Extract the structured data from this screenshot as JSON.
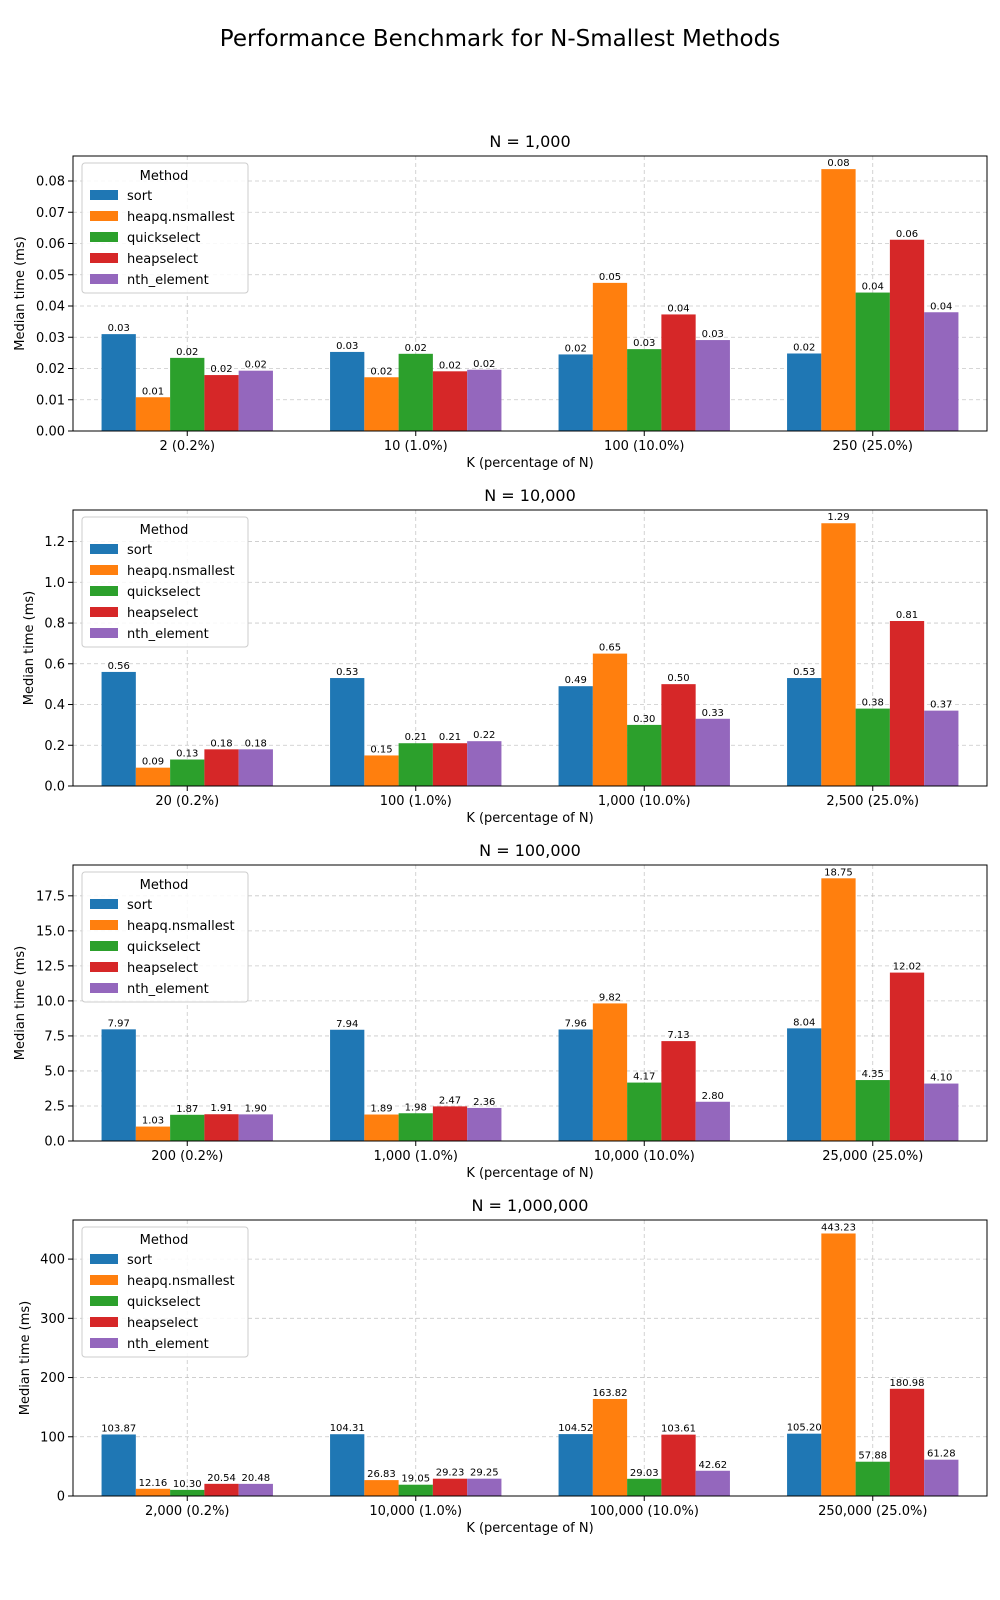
{
  "figure": {
    "title": "Performance Benchmark for N-Smallest Methods"
  },
  "colors": {
    "sort": "#1f77b4",
    "heapq.nsmallest": "#ff7f0e",
    "quickselect": "#2ca02c",
    "heapselect": "#d62728",
    "nth_element": "#9467bd"
  },
  "legend": {
    "title": "Method",
    "placement": "upper-left"
  },
  "chart_data": [
    {
      "type": "bar",
      "title": "N = 1,000",
      "xlabel": "K (percentage of N)",
      "ylabel": "Median time (ms)",
      "ylim": [
        0,
        0.088
      ],
      "yticks": [
        0,
        0.01,
        0.02,
        0.03,
        0.04,
        0.05,
        0.06,
        0.07,
        0.08
      ],
      "ytick_labels": [
        "0.00",
        "0.01",
        "0.02",
        "0.03",
        "0.04",
        "0.05",
        "0.06",
        "0.07",
        "0.08"
      ],
      "grid": true,
      "categories": [
        "2 (0.2%)",
        "10 (1.0%)",
        "100 (10.0%)",
        "250 (25.0%)"
      ],
      "series": [
        {
          "name": "sort",
          "values": [
            0.031,
            0.0253,
            0.0245,
            0.0248
          ],
          "labels": [
            "0.03",
            "0.03",
            "0.02",
            "0.02"
          ]
        },
        {
          "name": "heapq.nsmallest",
          "values": [
            0.0108,
            0.0172,
            0.0474,
            0.0838
          ],
          "labels": [
            "0.01",
            "0.02",
            "0.05",
            "0.08"
          ]
        },
        {
          "name": "quickselect",
          "values": [
            0.0234,
            0.0247,
            0.0262,
            0.0443
          ],
          "labels": [
            "0.02",
            "0.02",
            "0.03",
            "0.04"
          ]
        },
        {
          "name": "heapselect",
          "values": [
            0.0179,
            0.0191,
            0.0373,
            0.0612
          ],
          "labels": [
            "0.02",
            "0.02",
            "0.04",
            "0.06"
          ]
        },
        {
          "name": "nth_element",
          "values": [
            0.0193,
            0.0196,
            0.0291,
            0.038
          ],
          "labels": [
            "0.02",
            "0.02",
            "0.03",
            "0.04"
          ]
        }
      ]
    },
    {
      "type": "bar",
      "title": "N = 10,000",
      "xlabel": "K (percentage of N)",
      "ylabel": "Median time (ms)",
      "ylim": [
        0,
        1.355
      ],
      "yticks": [
        0,
        0.2,
        0.4,
        0.6,
        0.8,
        1.0,
        1.2
      ],
      "ytick_labels": [
        "0.0",
        "0.2",
        "0.4",
        "0.6",
        "0.8",
        "1.0",
        "1.2"
      ],
      "grid": true,
      "categories": [
        "20 (0.2%)",
        "100 (1.0%)",
        "1,000 (10.0%)",
        "2,500 (25.0%)"
      ],
      "series": [
        {
          "name": "sort",
          "values": [
            0.56,
            0.53,
            0.49,
            0.53
          ],
          "labels": [
            "0.56",
            "0.53",
            "0.49",
            "0.53"
          ]
        },
        {
          "name": "heapq.nsmallest",
          "values": [
            0.09,
            0.15,
            0.65,
            1.29
          ],
          "labels": [
            "0.09",
            "0.15",
            "0.65",
            "1.29"
          ]
        },
        {
          "name": "quickselect",
          "values": [
            0.13,
            0.21,
            0.3,
            0.38
          ],
          "labels": [
            "0.13",
            "0.21",
            "0.30",
            "0.38"
          ]
        },
        {
          "name": "heapselect",
          "values": [
            0.18,
            0.21,
            0.5,
            0.81
          ],
          "labels": [
            "0.18",
            "0.21",
            "0.50",
            "0.81"
          ]
        },
        {
          "name": "nth_element",
          "values": [
            0.18,
            0.22,
            0.33,
            0.37
          ],
          "labels": [
            "0.18",
            "0.22",
            "0.33",
            "0.37"
          ]
        }
      ]
    },
    {
      "type": "bar",
      "title": "N = 100,000",
      "xlabel": "K (percentage of N)",
      "ylabel": "Median time (ms)",
      "ylim": [
        0,
        19.7
      ],
      "yticks": [
        0,
        2.5,
        5.0,
        7.5,
        10.0,
        12.5,
        15.0,
        17.5
      ],
      "ytick_labels": [
        "0.0",
        "2.5",
        "5.0",
        "7.5",
        "10.0",
        "12.5",
        "15.0",
        "17.5"
      ],
      "grid": true,
      "categories": [
        "200 (0.2%)",
        "1,000 (1.0%)",
        "10,000 (10.0%)",
        "25,000 (25.0%)"
      ],
      "series": [
        {
          "name": "sort",
          "values": [
            7.97,
            7.94,
            7.96,
            8.04
          ],
          "labels": [
            "7.97",
            "7.94",
            "7.96",
            "8.04"
          ]
        },
        {
          "name": "heapq.nsmallest",
          "values": [
            1.03,
            1.89,
            9.82,
            18.75
          ],
          "labels": [
            "1.03",
            "1.89",
            "9.82",
            "18.75"
          ]
        },
        {
          "name": "quickselect",
          "values": [
            1.87,
            1.98,
            4.17,
            4.35
          ],
          "labels": [
            "1.87",
            "1.98",
            "4.17",
            "4.35"
          ]
        },
        {
          "name": "heapselect",
          "values": [
            1.91,
            2.47,
            7.13,
            12.02
          ],
          "labels": [
            "1.91",
            "2.47",
            "7.13",
            "12.02"
          ]
        },
        {
          "name": "nth_element",
          "values": [
            1.9,
            2.36,
            2.8,
            4.1
          ],
          "labels": [
            "1.90",
            "2.36",
            "2.80",
            "4.10"
          ]
        }
      ]
    },
    {
      "type": "bar",
      "title": "N = 1,000,000",
      "xlabel": "K (percentage of N)",
      "ylabel": "Median time (ms)",
      "ylim": [
        0,
        466
      ],
      "yticks": [
        0,
        100,
        200,
        300,
        400
      ],
      "ytick_labels": [
        "0",
        "100",
        "200",
        "300",
        "400"
      ],
      "grid": true,
      "categories": [
        "2,000 (0.2%)",
        "10,000 (1.0%)",
        "100,000 (10.0%)",
        "250,000 (25.0%)"
      ],
      "series": [
        {
          "name": "sort",
          "values": [
            103.87,
            104.31,
            104.52,
            105.2
          ],
          "labels": [
            "103.87",
            "104.31",
            "104.52",
            "105.20"
          ]
        },
        {
          "name": "heapq.nsmallest",
          "values": [
            12.16,
            26.83,
            163.82,
            443.23
          ],
          "labels": [
            "12.16",
            "26.83",
            "163.82",
            "443.23"
          ]
        },
        {
          "name": "quickselect",
          "values": [
            10.3,
            19.05,
            29.03,
            57.88
          ],
          "labels": [
            "10.30",
            "19.05",
            "29.03",
            "57.88"
          ]
        },
        {
          "name": "heapselect",
          "values": [
            20.54,
            29.23,
            103.61,
            180.98
          ],
          "labels": [
            "20.54",
            "29.23",
            "103.61",
            "180.98"
          ]
        },
        {
          "name": "nth_element",
          "values": [
            20.48,
            29.25,
            42.62,
            61.28
          ],
          "labels": [
            "20.48",
            "29.25",
            "42.62",
            "61.28"
          ]
        }
      ]
    }
  ]
}
